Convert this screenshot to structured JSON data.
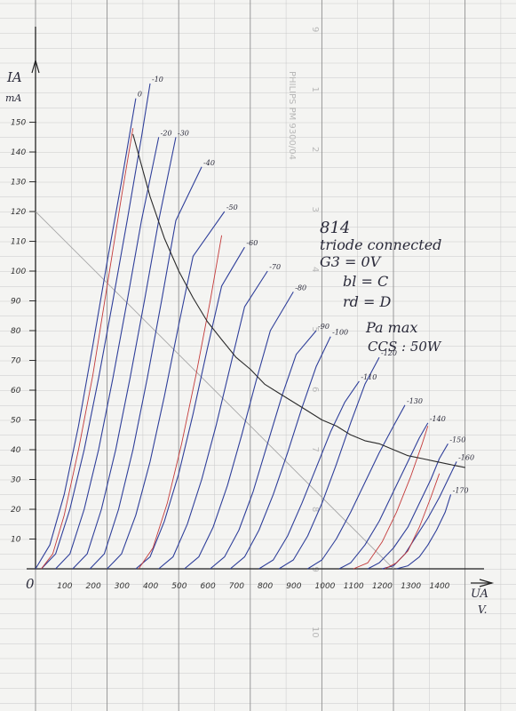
{
  "chart_data": {
    "type": "line",
    "title": "",
    "ylabel": "IA",
    "yunit": "mA",
    "xlabel": "UA",
    "xunit": "V.",
    "origin_label": "0",
    "xlim": [
      0,
      1550
    ],
    "ylim": [
      0,
      160
    ],
    "x_ticks": [
      100,
      200,
      300,
      400,
      500,
      600,
      700,
      800,
      900,
      1000,
      1100,
      1200,
      1300,
      1400
    ],
    "x_tick_labels": [
      "100",
      "200",
      "300",
      "400",
      "500",
      "600",
      "700",
      "800",
      "900",
      "1000",
      "1100",
      "1200",
      "1300",
      "1400"
    ],
    "y_ticks": [
      10,
      20,
      30,
      40,
      50,
      60,
      70,
      80,
      90,
      100,
      110,
      120,
      130,
      140,
      150
    ],
    "y_tick_labels": [
      "10",
      "20",
      "30",
      "40",
      "50",
      "60",
      "70",
      "80",
      "90",
      "100",
      "110",
      "120",
      "130",
      "140",
      "150"
    ],
    "grid": true,
    "series": [
      {
        "name": "0",
        "x": [
          0,
          50,
          100,
          150,
          200,
          250,
          300,
          350
        ],
        "y": [
          0,
          8,
          25,
          48,
          75,
          103,
          130,
          158
        ]
      },
      {
        "name": "-10",
        "x": [
          20,
          70,
          120,
          170,
          220,
          270,
          320,
          370,
          400
        ],
        "y": [
          0,
          5,
          20,
          40,
          64,
          90,
          117,
          145,
          163
        ]
      },
      {
        "name": "-20",
        "x": [
          70,
          120,
          170,
          220,
          270,
          320,
          370,
          430
        ],
        "y": [
          0,
          5,
          20,
          40,
          64,
          90,
          117,
          145
        ]
      },
      {
        "name": "-30",
        "x": [
          130,
          180,
          230,
          280,
          330,
          380,
          430,
          490
        ],
        "y": [
          0,
          5,
          20,
          40,
          64,
          90,
          117,
          145
        ]
      },
      {
        "name": "-40",
        "x": [
          190,
          240,
          290,
          340,
          390,
          440,
          490,
          580
        ],
        "y": [
          0,
          5,
          20,
          40,
          64,
          90,
          117,
          135
        ]
      },
      {
        "name": "-50",
        "x": [
          250,
          300,
          350,
          400,
          450,
          500,
          550,
          660
        ],
        "y": [
          0,
          5,
          18,
          36,
          58,
          82,
          105,
          120
        ]
      },
      {
        "name": "-60",
        "x": [
          350,
          400,
          450,
          500,
          550,
          600,
          650,
          730
        ],
        "y": [
          0,
          4,
          16,
          32,
          52,
          74,
          95,
          108
        ]
      },
      {
        "name": "-70",
        "x": [
          430,
          480,
          530,
          580,
          630,
          680,
          730,
          810
        ],
        "y": [
          0,
          4,
          15,
          30,
          48,
          68,
          88,
          100
        ]
      },
      {
        "name": "-80",
        "x": [
          520,
          570,
          620,
          670,
          720,
          770,
          820,
          900
        ],
        "y": [
          0,
          4,
          14,
          28,
          45,
          63,
          80,
          93
        ]
      },
      {
        "name": "-90",
        "x": [
          610,
          660,
          710,
          760,
          810,
          860,
          910,
          980
        ],
        "y": [
          0,
          4,
          13,
          26,
          42,
          58,
          72,
          80
        ]
      },
      {
        "name": "-100",
        "x": [
          680,
          730,
          780,
          830,
          880,
          930,
          980,
          1030
        ],
        "y": [
          0,
          4,
          13,
          25,
          39,
          54,
          68,
          78
        ]
      },
      {
        "name": "-110",
        "x": [
          780,
          830,
          880,
          930,
          980,
          1030,
          1080,
          1130
        ],
        "y": [
          0,
          3,
          11,
          22,
          34,
          46,
          56,
          63
        ]
      },
      {
        "name": "-120",
        "x": [
          850,
          900,
          950,
          1000,
          1050,
          1100,
          1150,
          1200
        ],
        "y": [
          0,
          3,
          11,
          22,
          35,
          49,
          62,
          71
        ]
      },
      {
        "name": "-130",
        "x": [
          950,
          1000,
          1050,
          1100,
          1150,
          1200,
          1250,
          1290
        ],
        "y": [
          0,
          3,
          10,
          19,
          29,
          39,
          48,
          55
        ]
      },
      {
        "name": "-140",
        "x": [
          1060,
          1100,
          1150,
          1200,
          1250,
          1300,
          1340,
          1370
        ],
        "y": [
          0,
          2,
          8,
          16,
          26,
          36,
          44,
          49
        ]
      },
      {
        "name": "-150",
        "x": [
          1160,
          1200,
          1250,
          1300,
          1340,
          1380,
          1410,
          1440
        ],
        "y": [
          0,
          2,
          7,
          14,
          22,
          30,
          37,
          42
        ]
      },
      {
        "name": "-160",
        "x": [
          1210,
          1250,
          1290,
          1330,
          1370,
          1410,
          1440,
          1470
        ],
        "y": [
          0,
          1,
          5,
          11,
          17,
          24,
          30,
          36
        ]
      },
      {
        "name": "-170",
        "x": [
          1260,
          1300,
          1340,
          1370,
          1400,
          1430,
          1450
        ],
        "y": [
          0,
          1,
          4,
          8,
          13,
          19,
          25
        ]
      }
    ],
    "series_color": "#2f3f9a",
    "red_curves": [
      {
        "x": [
          20,
          60,
          100,
          150,
          200,
          250,
          300,
          340
        ],
        "y": [
          0,
          5,
          18,
          40,
          65,
          95,
          125,
          148
        ]
      },
      {
        "x": [
          360,
          410,
          460,
          510,
          560,
          610,
          650
        ],
        "y": [
          0,
          7,
          22,
          42,
          65,
          90,
          112
        ]
      },
      {
        "x": [
          1110,
          1160,
          1210,
          1260,
          1310,
          1350,
          1370
        ],
        "y": [
          0,
          2,
          9,
          19,
          31,
          42,
          48
        ]
      },
      {
        "x": [
          1220,
          1260,
          1300,
          1340,
          1380,
          1410
        ],
        "y": [
          0,
          2,
          6,
          14,
          24,
          32
        ]
      }
    ],
    "red_color": "#c43a3a",
    "power_curve_label": "Pa max",
    "power_curve": {
      "x": [
        340,
        400,
        450,
        500,
        550,
        600,
        650,
        700,
        750,
        800,
        850,
        900,
        950,
        1000,
        1050,
        1100,
        1150,
        1200,
        1250,
        1300,
        1350,
        1400,
        1450,
        1500
      ],
      "y": [
        146,
        125,
        111,
        100,
        91,
        83,
        77,
        71,
        67,
        62,
        59,
        56,
        53,
        50,
        48,
        45,
        43,
        42,
        40,
        38,
        37,
        36,
        35,
        34
      ]
    },
    "load_line": {
      "x": [
        0,
        1250
      ],
      "y": [
        120,
        0
      ]
    },
    "load_line_color": "#a8a8a8",
    "annotations": [
      {
        "id": "tube",
        "text": "814"
      },
      {
        "id": "mode",
        "text": "triode connected"
      },
      {
        "id": "g3",
        "text": "G3 = 0V"
      },
      {
        "id": "bl",
        "text": "bl  =  C"
      },
      {
        "id": "rd",
        "text": "rd  =  D"
      },
      {
        "id": "pamax",
        "text": "Pa max"
      },
      {
        "id": "ccs",
        "text": "CCS : 50W"
      }
    ]
  },
  "paper": {
    "brand": "PHILIPS  PM 9300/04",
    "ruler_numbers": [
      "9",
      "1",
      "2",
      "3",
      "4",
      "5",
      "6",
      "7",
      "8",
      "9",
      "10"
    ],
    "paper_color": "#f4f4f2",
    "grid_color": "#c9c9c9",
    "grid_major_color": "#8f8f8f"
  }
}
